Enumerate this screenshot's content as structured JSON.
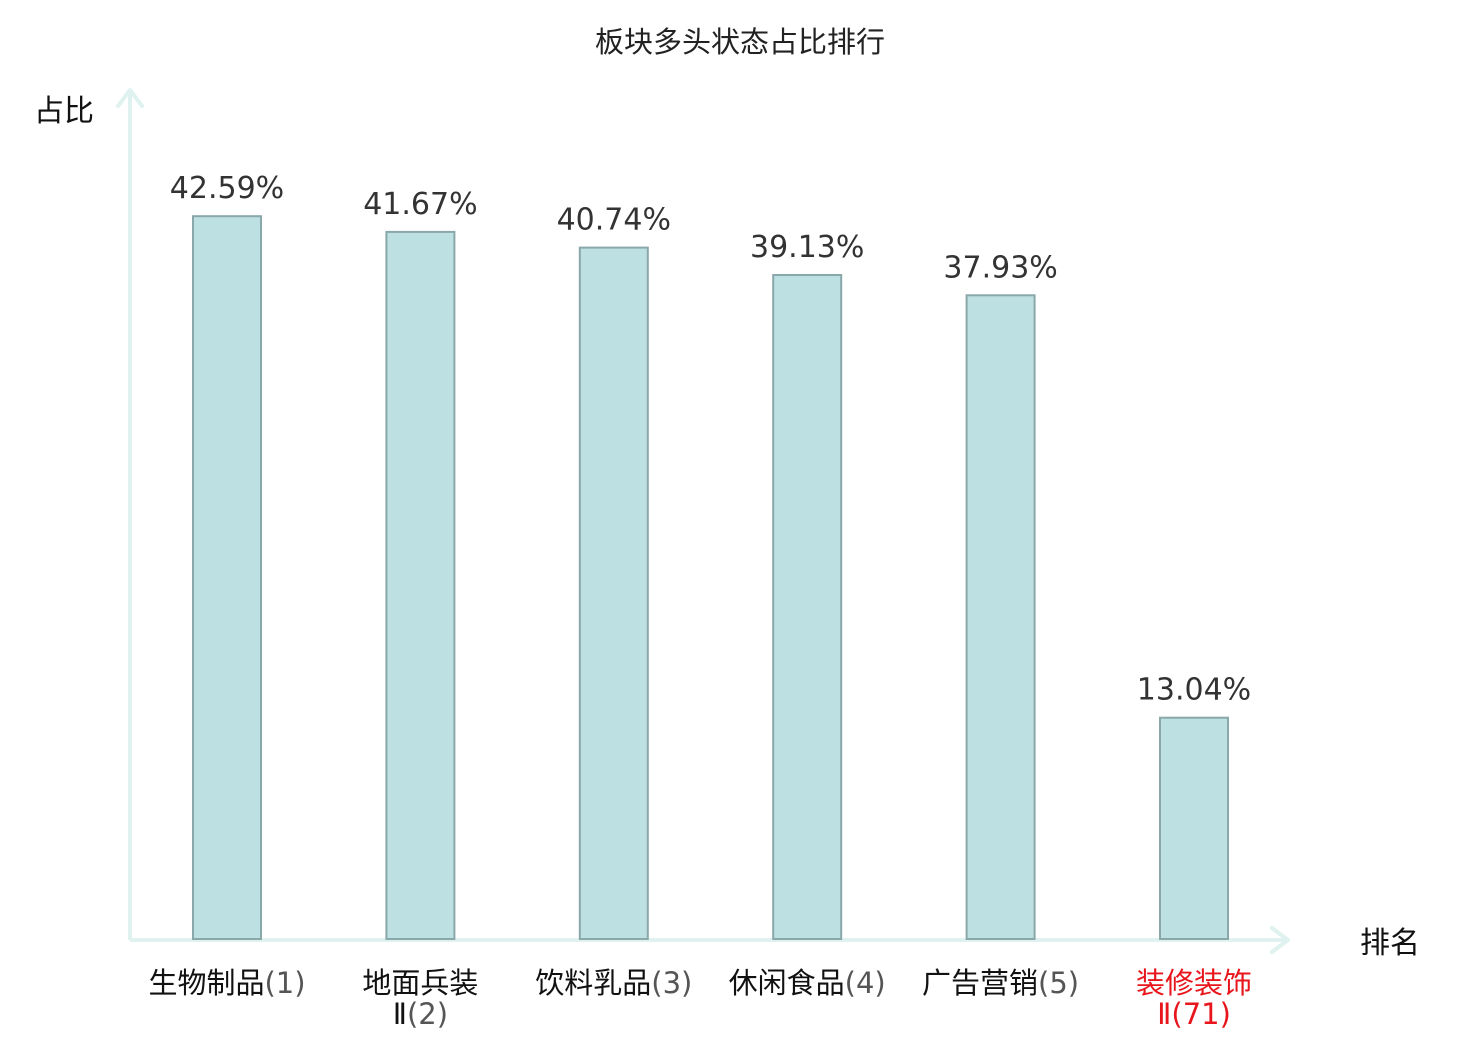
{
  "chart_data": {
    "type": "bar",
    "title": "板块多头状态占比排行",
    "ylabel": "占比",
    "xlabel": "排名",
    "ylim": [
      0,
      50
    ],
    "grid": false,
    "categories": [
      {
        "name_lines": [
          "生物制品"
        ],
        "rank": "(1)",
        "highlight": false
      },
      {
        "name_lines": [
          "地面兵装",
          "Ⅱ"
        ],
        "rank": "(2)",
        "highlight": false
      },
      {
        "name_lines": [
          "饮料乳品"
        ],
        "rank": "(3)",
        "highlight": false
      },
      {
        "name_lines": [
          "休闲食品"
        ],
        "rank": "(4)",
        "highlight": false
      },
      {
        "name_lines": [
          "广告营销"
        ],
        "rank": "(5)",
        "highlight": false
      },
      {
        "name_lines": [
          "装修装饰",
          "Ⅱ"
        ],
        "rank": "(71)",
        "highlight": true
      }
    ],
    "values": [
      42.59,
      41.67,
      40.74,
      39.13,
      37.93,
      13.04
    ],
    "value_labels": [
      "42.59%",
      "41.67%",
      "40.74%",
      "39.13%",
      "37.93%",
      "13.04%"
    ],
    "colors": {
      "bar_fill": "#bde0e3",
      "bar_stroke": "#8aa7aa",
      "axis": "#dff2ef",
      "highlight_text": "#e8161c"
    }
  }
}
